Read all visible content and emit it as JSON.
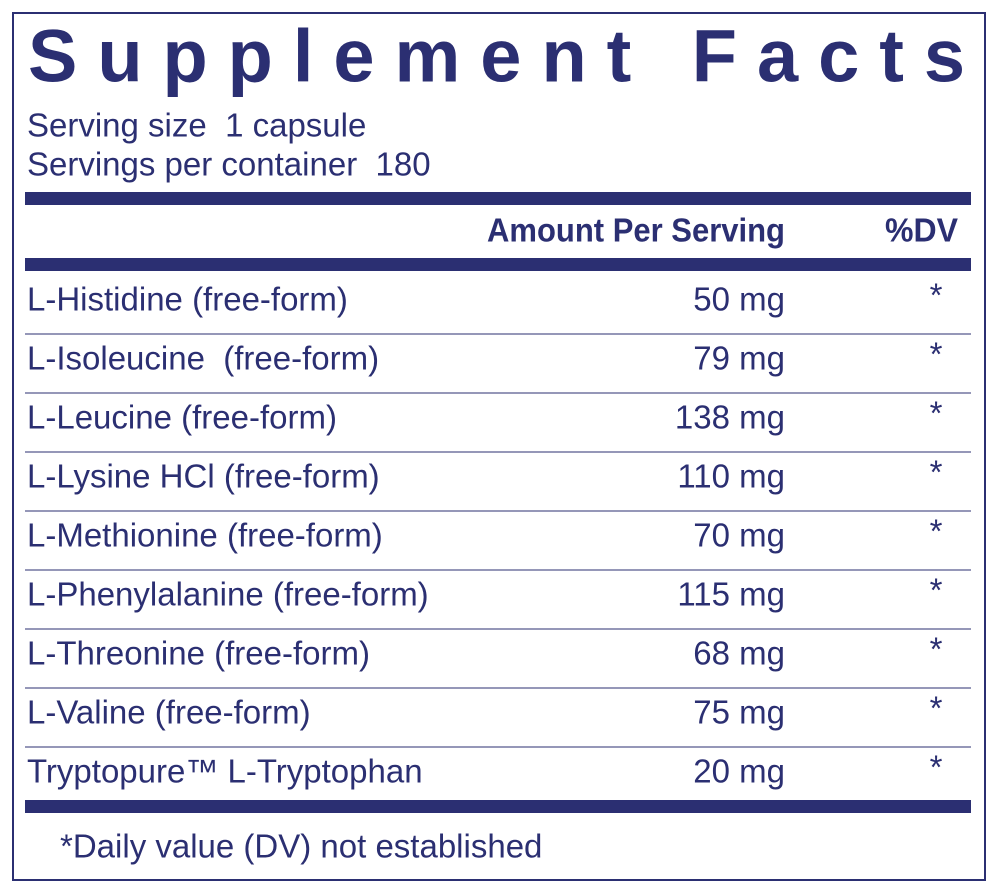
{
  "header": {
    "title": "Supplement Facts",
    "serving_size": "Serving size  1 capsule",
    "servings_per_container": "Servings per container  180"
  },
  "table": {
    "columns": [
      "Amount Per Serving",
      "%DV"
    ],
    "rows": [
      [
        "L-Histidine (free-form)",
        "50 mg",
        "*"
      ],
      [
        "L-Isoleucine  (free-form)",
        "79 mg",
        "*"
      ],
      [
        "L-Leucine (free-form)",
        "138 mg",
        "*"
      ],
      [
        "L-Lysine HCl (free-form)",
        "110 mg",
        "*"
      ],
      [
        "L-Methionine (free-form)",
        "70 mg",
        "*"
      ],
      [
        "L-Phenylalanine (free-form)",
        "115 mg",
        "*"
      ],
      [
        "L-Threonine (free-form)",
        "68 mg",
        "*"
      ],
      [
        "L-Valine (free-form)",
        "75 mg",
        "*"
      ],
      [
        "Tryptopure™ L-Tryptophan",
        "20 mg",
        "*"
      ]
    ]
  },
  "footnote": "*Daily value (DV) not established"
}
